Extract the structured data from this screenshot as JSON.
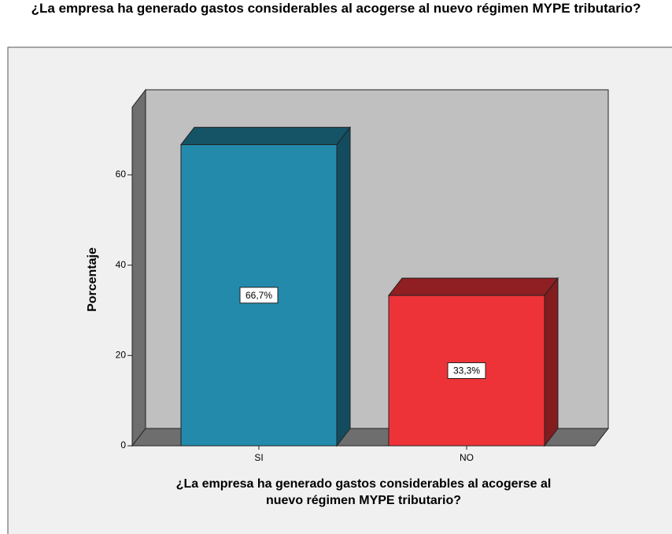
{
  "chart_data": {
    "type": "bar3d",
    "title": "¿La empresa ha generado gastos considerables al acogerse al nuevo régimen MYPE tributario?",
    "x_label": "¿La empresa ha generado gastos considerables al acogerse al nuevo régimen MYPE tributario?",
    "y_label": "Porcentaje",
    "categories": [
      "SI",
      "NO"
    ],
    "values": [
      66.7,
      33.3
    ],
    "value_labels": [
      "66,7%",
      "33,3%"
    ],
    "colors": [
      "#238aab",
      "#ee3338"
    ],
    "ylim": [
      0,
      75
    ],
    "yticks": [
      0,
      20,
      40,
      60
    ]
  }
}
